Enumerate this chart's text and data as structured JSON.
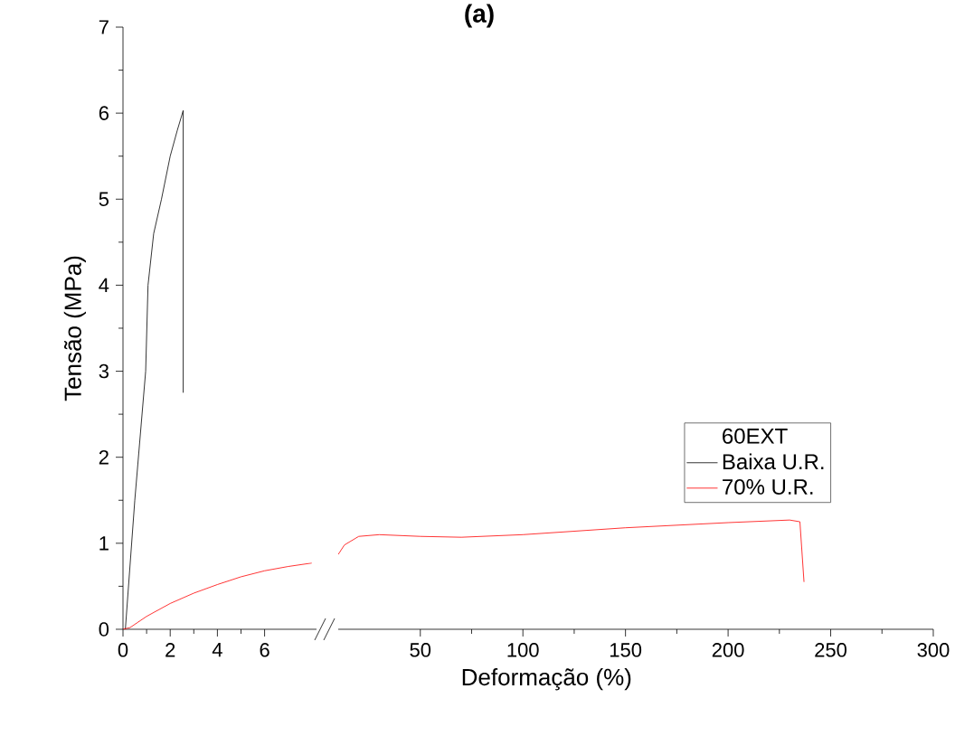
{
  "chart_data": [
    {
      "type": "line",
      "ylabel": "Tensão (MPa)",
      "legend_title": "60EXT",
      "legend": "right",
      "grid": false,
      "xlim": [
        0,
        8.2
      ],
      "xticks": [
        0,
        2,
        4,
        6
      ],
      "ylim": [
        0,
        7
      ],
      "yticks": [
        0,
        1,
        2,
        3,
        4,
        5,
        6,
        7
      ],
      "series": [
        {
          "name": "Baixa U.R.",
          "color": "#000000",
          "x": [
            0.1,
            0.5,
            0.96,
            1.06,
            1.3,
            1.63,
            2.0,
            2.3,
            2.55,
            2.55
          ],
          "values": [
            0,
            1.5,
            3,
            4,
            4.6,
            5,
            5.5,
            5.8,
            6.03,
            2.75
          ]
        },
        {
          "name": "70% U.R.",
          "color": "#ff0000",
          "x": [
            0,
            0.3,
            1,
            2,
            3,
            4,
            5,
            6,
            7,
            8.0
          ],
          "values": [
            0,
            0.02,
            0.15,
            0.3,
            0.42,
            0.52,
            0.61,
            0.68,
            0.73,
            0.77
          ]
        }
      ]
    },
    {
      "type": "line",
      "title": "(a)",
      "xlabel": "Deformação (%)",
      "tick_labels": "x",
      "grid": false,
      "xlim": [
        10,
        300
      ],
      "xticks": [
        50,
        100,
        150,
        200,
        250,
        300
      ],
      "ylim": [
        0,
        7
      ],
      "series": [
        {
          "color": "#ff0000",
          "x": [
            10,
            13,
            20,
            30,
            50,
            70,
            100,
            150,
            200,
            230,
            235,
            237
          ],
          "values": [
            0.87,
            0.98,
            1.08,
            1.1,
            1.08,
            1.07,
            1.1,
            1.18,
            1.24,
            1.27,
            1.25,
            0.55
          ]
        }
      ]
    }
  ]
}
